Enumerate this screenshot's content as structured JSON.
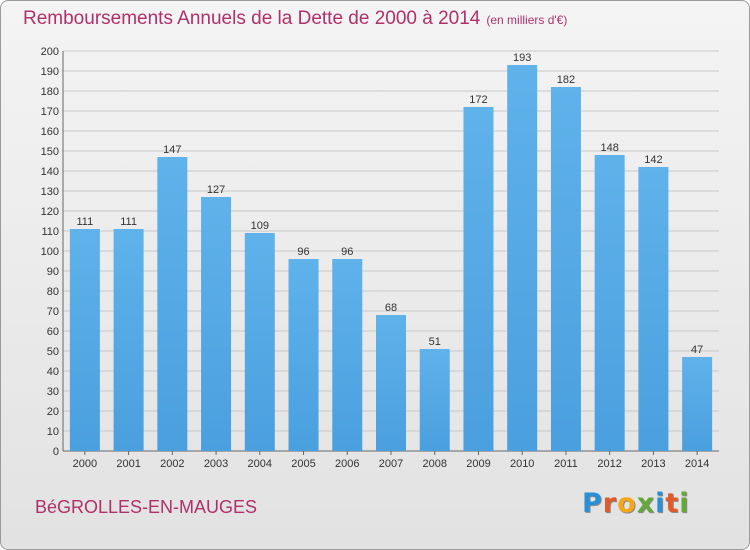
{
  "chart_data": {
    "type": "bar",
    "title": "Remboursements Annuels de la Dette de 2000 à 2014",
    "subtitle": "(en milliers d'€)",
    "categories": [
      "2000",
      "2001",
      "2002",
      "2003",
      "2004",
      "2005",
      "2006",
      "2007",
      "2008",
      "2009",
      "2010",
      "2011",
      "2012",
      "2013",
      "2014"
    ],
    "values": [
      111,
      111,
      147,
      127,
      109,
      96,
      96,
      68,
      51,
      172,
      193,
      182,
      148,
      142,
      47
    ],
    "ylim": [
      0,
      200
    ],
    "ytick_step": 10,
    "grid": true,
    "bar_color": "#4a9fde"
  },
  "footer": {
    "city": "BéGROLLES-EN-MAUGES",
    "logo_letters": [
      "P",
      "r",
      "o",
      "x",
      "i",
      "t",
      "i"
    ],
    "logo_colors": [
      "#2a8fd6",
      "#e05a2a",
      "#f2a818",
      "#62a83a",
      "#2a8fd6",
      "#e05a2a",
      "#62a83a"
    ]
  }
}
